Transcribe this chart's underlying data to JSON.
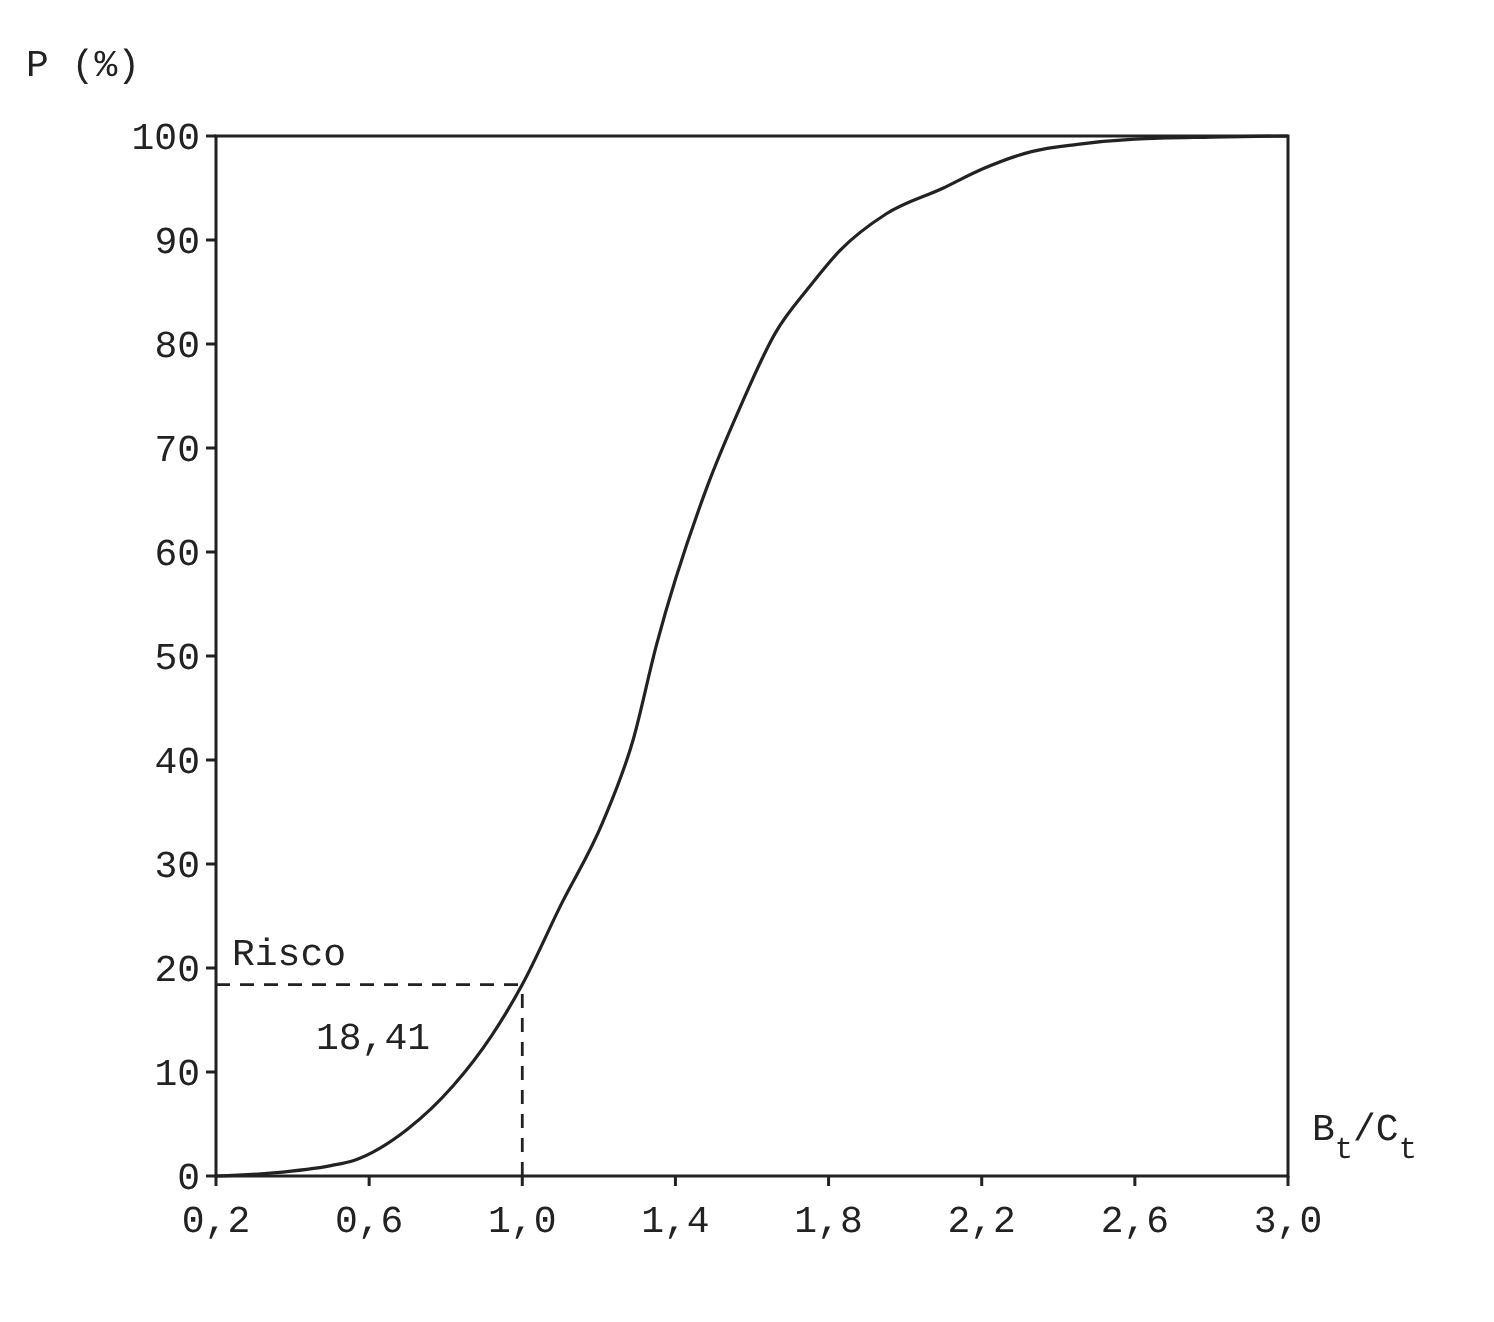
{
  "chart_data": {
    "type": "line",
    "ylabel": "P (%)",
    "xlabel": "B$_{t}$/C$_{t}$",
    "x": [
      0.2,
      0.35,
      0.5,
      0.56,
      0.7,
      0.82,
      0.92,
      1.0,
      1.1,
      1.21,
      1.29,
      1.35,
      1.48,
      1.57,
      1.66,
      1.75,
      1.83,
      1.95,
      2.1,
      2.2,
      2.33,
      2.45,
      2.6,
      2.8,
      3.0
    ],
    "series": [
      {
        "color": "#222222",
        "values": [
          0,
          0.3,
          1,
          1.5,
          4.5,
          8.7,
          13.5,
          18.41,
          26,
          34,
          42,
          51,
          66,
          74,
          81,
          85.5,
          89,
          92.5,
          95,
          96.8,
          98.5,
          99.2,
          99.7,
          99.9,
          100
        ]
      }
    ],
    "xlim": [
      0.2,
      3.0
    ],
    "ylim": [
      0,
      100
    ],
    "xticks": [
      {
        "value": 0.2,
        "label": "0,2"
      },
      {
        "value": 0.6,
        "label": "0,6"
      },
      {
        "value": 1.0,
        "label": "1,0"
      },
      {
        "value": 1.4,
        "label": "1,4"
      },
      {
        "value": 1.8,
        "label": "1,8"
      },
      {
        "value": 2.2,
        "label": "2,2"
      },
      {
        "value": 2.6,
        "label": "2,6"
      },
      {
        "value": 3.0,
        "label": "3,0"
      }
    ],
    "yticks": [
      0,
      10,
      20,
      30,
      40,
      50,
      60,
      70,
      80,
      90,
      100
    ],
    "ref_lines": [
      {
        "axis": "y",
        "value": 18.41,
        "label": "Risco",
        "line_style": "dashed"
      },
      {
        "axis": "x",
        "value": 1.0,
        "line_style": "dashed"
      }
    ],
    "annotations": [
      "18,41"
    ],
    "grid": false,
    "marker": "none",
    "line_style": "solid"
  }
}
